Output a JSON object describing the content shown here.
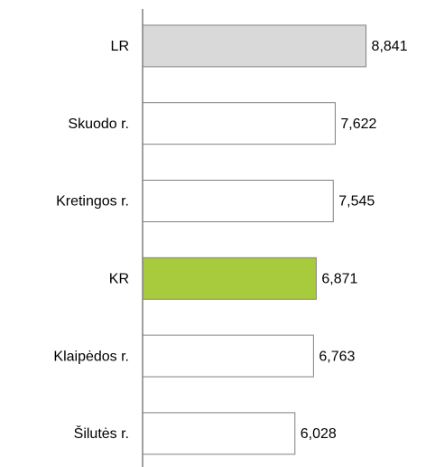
{
  "chart_data": {
    "type": "hbar",
    "categories": [
      "LR",
      "Skuodo r.",
      "Kretingos r.",
      "KR",
      "Klaipėdos r.",
      "Šilutės r."
    ],
    "values": [
      8.841,
      7.622,
      7.545,
      6.871,
      6.763,
      6.028
    ],
    "value_labels": [
      "8,841",
      "7,622",
      "7,545",
      "6,871",
      "6,763",
      "6,028"
    ],
    "colors": [
      "#d9d9d9",
      "#ffffff",
      "#ffffff",
      "#a8cb3d",
      "#ffffff",
      "#ffffff"
    ],
    "xlim": [
      0,
      10
    ]
  }
}
